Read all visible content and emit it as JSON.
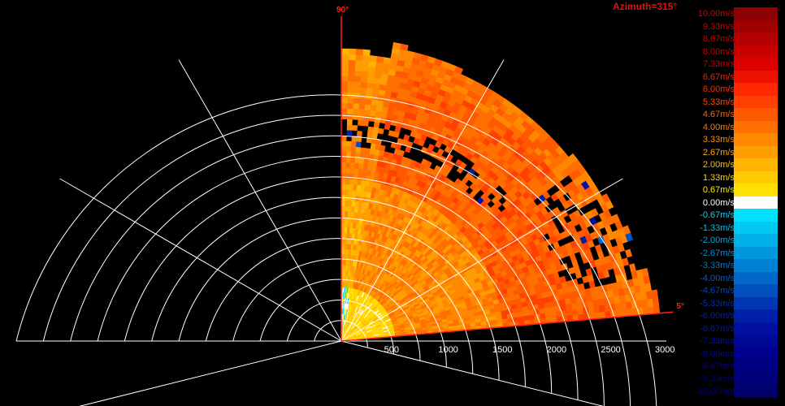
{
  "azimuth_label": "Azimuth=315°",
  "colorbar": {
    "labels": [
      "10.00m/s",
      "9.33m/s",
      "8.67m/s",
      "8.00m/s",
      "7.33m/s",
      "6.67m/s",
      "6.00m/s",
      "5.33m/s",
      "4.67m/s",
      "4.00m/s",
      "3.33m/s",
      "2.67m/s",
      "2.00m/s",
      "1.33m/s",
      "0.67m/s",
      "0.00m/s",
      "-0.67m/s",
      "-1.33m/s",
      "-2.00m/s",
      "-2.67m/s",
      "-3.33m/s",
      "-4.00m/s",
      "-4.67m/s",
      "-5.33m/s",
      "-6.00m/s",
      "-6.67m/s",
      "-7.33m/s",
      "-8.00m/s",
      "-8.67m/s",
      "-9.33m/s",
      "-10.00m/s"
    ],
    "colors": [
      "#8b0000",
      "#a00000",
      "#b40000",
      "#c80000",
      "#dc0000",
      "#f01000",
      "#ff2800",
      "#ff4000",
      "#ff5a00",
      "#ff7000",
      "#ff8800",
      "#ff9e00",
      "#ffb400",
      "#ffca00",
      "#ffe000",
      "#ffffff",
      "#00e0ff",
      "#00c8f0",
      "#00b0e6",
      "#0098dc",
      "#0080d2",
      "#0068c8",
      "#0050be",
      "#0038b4",
      "#0020aa",
      "#0010a0",
      "#000896",
      "#00008c",
      "#000082",
      "#000078",
      "#00006e"
    ],
    "label_colors": [
      "#cc0000",
      "#cc0000",
      "#cc0000",
      "#cc0000",
      "#cc0000",
      "#ff2000",
      "#ff3000",
      "#ff4800",
      "#ff6000",
      "#ff7800",
      "#ff9000",
      "#ffa800",
      "#ffc000",
      "#ffd800",
      "#ffee00",
      "#ffffff",
      "#00d8ff",
      "#00c0f0",
      "#00a8e0",
      "#0090d8",
      "#0078d0",
      "#0060c8",
      "#0048c0",
      "#0030b8",
      "#0020b0",
      "#0018a8",
      "#0010a0",
      "#000898",
      "#000090",
      "#000088",
      "#000080"
    ]
  },
  "chart_data": {
    "type": "heatmap",
    "subtype": "radar-ppi-sector",
    "title": "Azimuth=315°",
    "range_unit": "m",
    "range_ticks": [
      500,
      1000,
      1500,
      2000,
      2500,
      3000
    ],
    "range_max": 3000,
    "sector_angle_labels": [
      "90°",
      "5°"
    ],
    "sector_start_deg": 5,
    "sector_end_deg": 90,
    "value_unit": "m/s",
    "value_range": [
      -10,
      10
    ],
    "dominant_values_by_range": [
      {
        "range_m": [
          0,
          500
        ],
        "velocity_mps": 1.0
      },
      {
        "range_m": [
          500,
          1500
        ],
        "velocity_mps": 3.3
      },
      {
        "range_m": [
          1500,
          2500
        ],
        "velocity_mps": 4.5
      },
      {
        "range_m": [
          2500,
          3000
        ],
        "velocity_mps": 4.0
      }
    ],
    "grid": true
  }
}
